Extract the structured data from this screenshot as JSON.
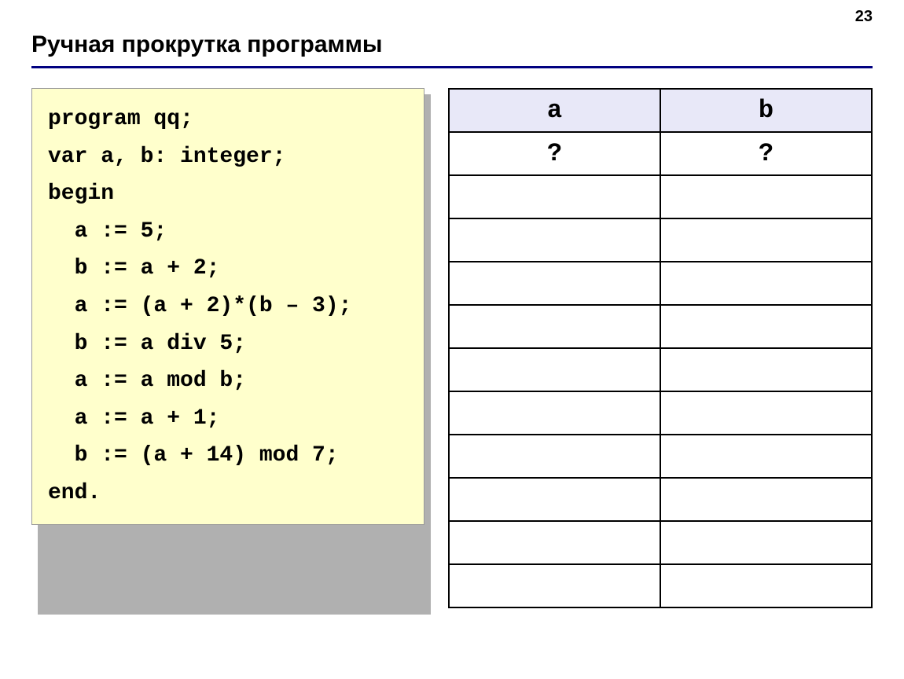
{
  "page_number": "23",
  "title": "Ручная прокрутка программы",
  "code": {
    "lines": [
      "program qq;",
      "var a, b: integer;",
      "begin",
      "  a := 5;",
      "  b := a + 2;",
      "  a := (a + 2)*(b – 3);",
      "  b := a div 5;",
      "  a := a mod b;",
      "  a := a + 1;",
      "  b := (a + 14) mod 7;",
      "end."
    ],
    "background_color": "#ffffcc",
    "shadow_color": "#b0b0b0",
    "font_family": "Courier New",
    "font_size": 28,
    "font_weight": "bold"
  },
  "table": {
    "headers": [
      "a",
      "b"
    ],
    "header_background": "#e8e8f8",
    "border_color": "#000000",
    "rows": [
      [
        "?",
        "?"
      ],
      [
        "",
        ""
      ],
      [
        "",
        ""
      ],
      [
        "",
        ""
      ],
      [
        "",
        ""
      ],
      [
        "",
        ""
      ],
      [
        "",
        ""
      ],
      [
        "",
        ""
      ],
      [
        "",
        ""
      ],
      [
        "",
        ""
      ],
      [
        "",
        ""
      ]
    ],
    "font_family": "Courier New",
    "font_size": 32
  },
  "divider_color": "#000080"
}
